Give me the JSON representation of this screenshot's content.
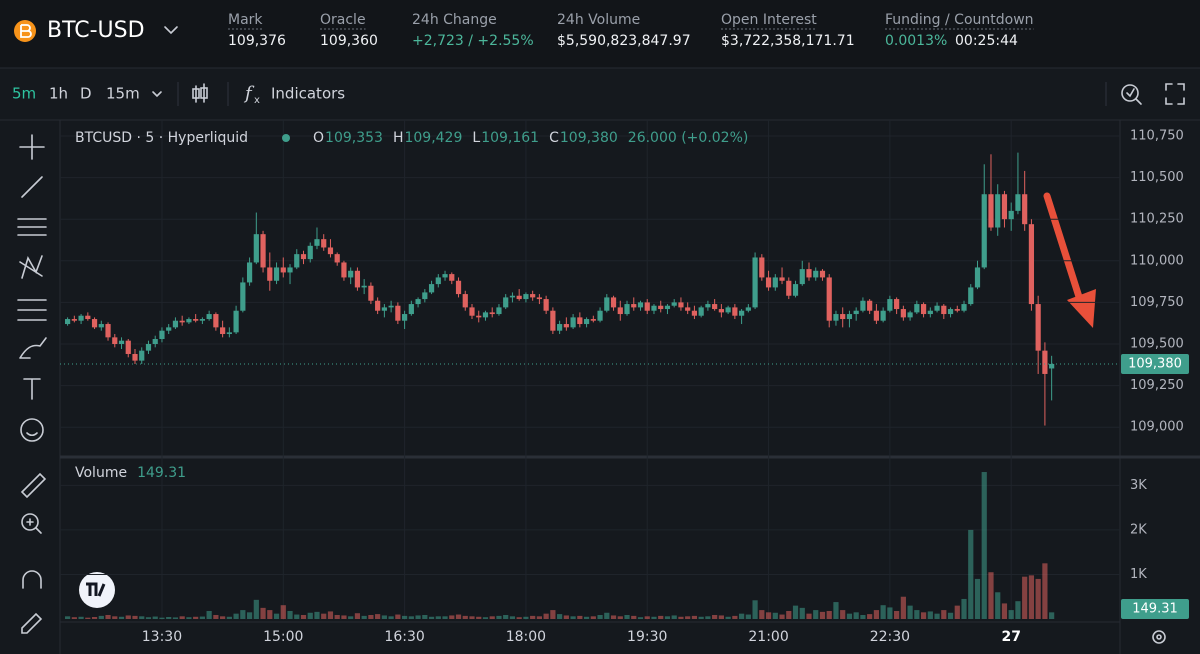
{
  "header": {
    "symbol": "BTC-USD",
    "stats": [
      {
        "label": "Mark",
        "value": "109,376"
      },
      {
        "label": "Oracle",
        "value": "109,360"
      },
      {
        "label": "24h Change",
        "value": "+2,723 / +2.55%"
      },
      {
        "label": "24h Volume",
        "value": "$5,590,823,847.97"
      },
      {
        "label": "Open Interest",
        "value": "$3,722,358,171.71"
      },
      {
        "label": "Funding / Countdown",
        "value": "0.0013%",
        "value2": "00:25:44"
      }
    ]
  },
  "toolbar": {
    "intervals": [
      "5m",
      "1h",
      "D",
      "15m"
    ],
    "indicators": "Indicators"
  },
  "chart_data": {
    "type": "candlestick",
    "title": "BTCUSD · 5 · Hyperliquid",
    "ohlc": [
      {
        "key": "O",
        "value": "109,353"
      },
      {
        "key": "H",
        "value": "109,429"
      },
      {
        "key": "L",
        "value": "109,161"
      },
      {
        "key": "C",
        "value": "109,380"
      }
    ],
    "change": "26.000 (+0.02%)",
    "last_label": "109,380",
    "up_color": "#3f9e8c",
    "down_color": "#e0625f",
    "x": [
      "12:20",
      "12:25",
      "12:30",
      "12:35",
      "12:40",
      "12:45",
      "12:50",
      "12:55",
      "13:00",
      "13:05",
      "13:10",
      "13:15",
      "13:20",
      "13:25",
      "13:30",
      "13:35",
      "13:40",
      "13:45",
      "13:50",
      "13:55",
      "14:00",
      "14:05",
      "14:10",
      "14:15",
      "14:20",
      "14:25",
      "14:30",
      "14:35",
      "14:40",
      "14:45",
      "14:50",
      "14:55",
      "15:00",
      "15:05",
      "15:10",
      "15:15",
      "15:20",
      "15:25",
      "15:30",
      "15:35",
      "15:40",
      "15:45",
      "15:50",
      "15:55",
      "16:00",
      "16:05",
      "16:10",
      "16:15",
      "16:20",
      "16:25",
      "16:30",
      "16:35",
      "16:40",
      "16:45",
      "16:50",
      "16:55",
      "17:00",
      "17:05",
      "17:10",
      "17:15",
      "17:20",
      "17:25",
      "17:30",
      "17:35",
      "17:40",
      "17:45",
      "17:50",
      "17:55",
      "18:00",
      "18:05",
      "18:10",
      "18:15",
      "18:20",
      "18:25",
      "18:30",
      "18:35",
      "18:40",
      "18:45",
      "18:50",
      "18:55",
      "19:00",
      "19:05",
      "19:10",
      "19:15",
      "19:20",
      "19:25",
      "19:30",
      "19:35",
      "19:40",
      "19:45",
      "19:50",
      "19:55",
      "20:00",
      "20:05",
      "20:10",
      "20:15",
      "20:20",
      "20:25",
      "20:30",
      "20:35",
      "20:40",
      "20:45",
      "20:50",
      "20:55",
      "21:00",
      "21:05",
      "21:10",
      "21:15",
      "21:20",
      "21:25",
      "21:30",
      "21:35",
      "21:40",
      "21:45",
      "21:50",
      "21:55",
      "22:00",
      "22:05",
      "22:10",
      "22:15",
      "22:20",
      "22:25",
      "22:30",
      "22:35",
      "22:40",
      "22:45",
      "22:50",
      "22:55",
      "23:00",
      "23:05",
      "23:10",
      "23:15",
      "23:20",
      "23:25",
      "23:30",
      "23:35",
      "23:40",
      "23:45",
      "23:50",
      "23:55",
      "00:00",
      "00:05",
      "00:10",
      "00:15",
      "00:20",
      "00:25",
      "00:30"
    ],
    "candles": [
      [
        109620,
        109660,
        109610,
        109650
      ],
      [
        109650,
        109670,
        109630,
        109640
      ],
      [
        109640,
        109680,
        109620,
        109670
      ],
      [
        109670,
        109690,
        109640,
        109650
      ],
      [
        109650,
        109660,
        109590,
        109600
      ],
      [
        109600,
        109640,
        109580,
        109620
      ],
      [
        109620,
        109630,
        109520,
        109540
      ],
      [
        109540,
        109560,
        109480,
        109500
      ],
      [
        109500,
        109540,
        109470,
        109520
      ],
      [
        109520,
        109530,
        109420,
        109440
      ],
      [
        109440,
        109470,
        109380,
        109400
      ],
      [
        109400,
        109480,
        109380,
        109460
      ],
      [
        109460,
        109520,
        109440,
        109500
      ],
      [
        109500,
        109550,
        109480,
        109530
      ],
      [
        109530,
        109600,
        109510,
        109580
      ],
      [
        109580,
        109620,
        109560,
        109600
      ],
      [
        109600,
        109660,
        109590,
        109640
      ],
      [
        109640,
        109670,
        109610,
        109630
      ],
      [
        109630,
        109660,
        109620,
        109650
      ],
      [
        109650,
        109680,
        109630,
        109640
      ],
      [
        109640,
        109660,
        109620,
        109650
      ],
      [
        109650,
        109700,
        109640,
        109680
      ],
      [
        109680,
        109690,
        109580,
        109600
      ],
      [
        109600,
        109640,
        109540,
        109560
      ],
      [
        109560,
        109600,
        109540,
        109570
      ],
      [
        109570,
        109730,
        109560,
        109700
      ],
      [
        109700,
        109900,
        109690,
        109870
      ],
      [
        109870,
        110020,
        109850,
        109990
      ],
      [
        109990,
        110290,
        109980,
        110160
      ],
      [
        110160,
        110180,
        109930,
        109960
      ],
      [
        109960,
        110050,
        109820,
        109880
      ],
      [
        109880,
        109990,
        109860,
        109960
      ],
      [
        109960,
        110020,
        109900,
        109930
      ],
      [
        109930,
        109980,
        109860,
        109960
      ],
      [
        109960,
        110070,
        109950,
        110040
      ],
      [
        110040,
        110060,
        109980,
        110010
      ],
      [
        110010,
        110110,
        109990,
        110090
      ],
      [
        110090,
        110200,
        110070,
        110130
      ],
      [
        110130,
        110160,
        110060,
        110080
      ],
      [
        110080,
        110130,
        110020,
        110040
      ],
      [
        110040,
        110050,
        109970,
        109990
      ],
      [
        109990,
        110000,
        109880,
        109900
      ],
      [
        109900,
        109960,
        109860,
        109940
      ],
      [
        109940,
        109960,
        109820,
        109840
      ],
      [
        109840,
        109890,
        109800,
        109850
      ],
      [
        109850,
        109870,
        109740,
        109760
      ],
      [
        109760,
        109780,
        109680,
        109700
      ],
      [
        109700,
        109740,
        109660,
        109720
      ],
      [
        109720,
        109760,
        109690,
        109730
      ],
      [
        109730,
        109750,
        109620,
        109640
      ],
      [
        109640,
        109700,
        109590,
        109680
      ],
      [
        109680,
        109760,
        109670,
        109740
      ],
      [
        109740,
        109780,
        109720,
        109770
      ],
      [
        109770,
        109830,
        109750,
        109810
      ],
      [
        109810,
        109880,
        109800,
        109860
      ],
      [
        109860,
        109920,
        109840,
        109900
      ],
      [
        109900,
        109940,
        109880,
        109920
      ],
      [
        109920,
        109930,
        109860,
        109880
      ],
      [
        109880,
        109900,
        109780,
        109800
      ],
      [
        109800,
        109820,
        109700,
        109720
      ],
      [
        109720,
        109740,
        109650,
        109670
      ],
      [
        109670,
        109700,
        109630,
        109660
      ],
      [
        109660,
        109700,
        109640,
        109690
      ],
      [
        109690,
        109720,
        109660,
        109680
      ],
      [
        109680,
        109740,
        109670,
        109720
      ],
      [
        109720,
        109800,
        109710,
        109780
      ],
      [
        109780,
        109810,
        109750,
        109790
      ],
      [
        109790,
        109830,
        109760,
        109770
      ],
      [
        109770,
        109810,
        109750,
        109800
      ],
      [
        109800,
        109820,
        109760,
        109780
      ],
      [
        109780,
        109800,
        109740,
        109770
      ],
      [
        109770,
        109790,
        109680,
        109700
      ],
      [
        109700,
        109720,
        109560,
        109580
      ],
      [
        109580,
        109640,
        109560,
        109620
      ],
      [
        109620,
        109660,
        109580,
        109600
      ],
      [
        109600,
        109680,
        109590,
        109660
      ],
      [
        109660,
        109690,
        109600,
        109620
      ],
      [
        109620,
        109660,
        109600,
        109650
      ],
      [
        109650,
        109670,
        109630,
        109640
      ],
      [
        109640,
        109720,
        109630,
        109700
      ],
      [
        109700,
        109800,
        109690,
        109780
      ],
      [
        109780,
        109790,
        109700,
        109720
      ],
      [
        109720,
        109760,
        109640,
        109680
      ],
      [
        109680,
        109760,
        109670,
        109740
      ],
      [
        109740,
        109780,
        109700,
        109720
      ],
      [
        109720,
        109760,
        109700,
        109750
      ],
      [
        109750,
        109770,
        109680,
        109700
      ],
      [
        109700,
        109740,
        109680,
        109730
      ],
      [
        109730,
        109760,
        109690,
        109710
      ],
      [
        109710,
        109740,
        109680,
        109730
      ],
      [
        109730,
        109770,
        109720,
        109750
      ],
      [
        109750,
        109780,
        109700,
        109720
      ],
      [
        109720,
        109750,
        109680,
        109700
      ],
      [
        109700,
        109730,
        109650,
        109670
      ],
      [
        109670,
        109730,
        109660,
        109720
      ],
      [
        109720,
        109760,
        109700,
        109740
      ],
      [
        109740,
        109770,
        109700,
        109710
      ],
      [
        109710,
        109740,
        109660,
        109690
      ],
      [
        109690,
        109730,
        109680,
        109720
      ],
      [
        109720,
        109740,
        109650,
        109670
      ],
      [
        109670,
        109710,
        109620,
        109700
      ],
      [
        109700,
        109740,
        109690,
        109720
      ],
      [
        109720,
        110050,
        109710,
        110020
      ],
      [
        110020,
        110040,
        109880,
        109900
      ],
      [
        109900,
        109940,
        109820,
        109840
      ],
      [
        109840,
        109920,
        109820,
        109900
      ],
      [
        109900,
        109960,
        109860,
        109880
      ],
      [
        109880,
        109900,
        109770,
        109790
      ],
      [
        109790,
        109880,
        109780,
        109860
      ],
      [
        109860,
        110000,
        109850,
        109950
      ],
      [
        109950,
        109990,
        109880,
        109900
      ],
      [
        109900,
        109960,
        109880,
        109940
      ],
      [
        109940,
        109950,
        109880,
        109900
      ],
      [
        109900,
        109920,
        109600,
        109640
      ],
      [
        109640,
        109700,
        109610,
        109680
      ],
      [
        109680,
        109720,
        109600,
        109650
      ],
      [
        109650,
        109700,
        109600,
        109680
      ],
      [
        109680,
        109720,
        109640,
        109700
      ],
      [
        109700,
        109780,
        109690,
        109760
      ],
      [
        109760,
        109770,
        109680,
        109700
      ],
      [
        109700,
        109740,
        109620,
        109640
      ],
      [
        109640,
        109720,
        109630,
        109700
      ],
      [
        109700,
        109790,
        109690,
        109770
      ],
      [
        109770,
        109780,
        109680,
        109710
      ],
      [
        109710,
        109730,
        109640,
        109660
      ],
      [
        109660,
        109700,
        109640,
        109690
      ],
      [
        109690,
        109760,
        109680,
        109740
      ],
      [
        109740,
        109750,
        109660,
        109680
      ],
      [
        109680,
        109720,
        109660,
        109700
      ],
      [
        109700,
        109750,
        109690,
        109730
      ],
      [
        109730,
        109740,
        109650,
        109680
      ],
      [
        109680,
        109720,
        109660,
        109710
      ],
      [
        109710,
        109730,
        109690,
        109700
      ],
      [
        109700,
        109760,
        109690,
        109740
      ],
      [
        109740,
        109860,
        109730,
        109840
      ],
      [
        109840,
        110000,
        109830,
        109960
      ],
      [
        109960,
        110580,
        109950,
        110400
      ],
      [
        110400,
        110640,
        110180,
        110200
      ],
      [
        110200,
        110460,
        110150,
        110400
      ],
      [
        110400,
        110420,
        110200,
        110250
      ],
      [
        110250,
        110350,
        110180,
        110300
      ],
      [
        110300,
        110650,
        110280,
        110400
      ],
      [
        110400,
        110540,
        110180,
        110220
      ],
      [
        110220,
        110250,
        109700,
        109740
      ],
      [
        109740,
        109790,
        109320,
        109460
      ],
      [
        109460,
        109510,
        109010,
        109320
      ],
      [
        109353,
        109429,
        109161,
        109380
      ]
    ],
    "ylim": [
      108833,
      110816
    ],
    "yticks": [
      {
        "value": 109000,
        "label": "109,000"
      },
      {
        "value": 109250,
        "label": "109,250"
      },
      {
        "value": 109500,
        "label": "109,500"
      },
      {
        "value": 109750,
        "label": "109,750"
      },
      {
        "value": 110000,
        "label": "110,000"
      },
      {
        "value": 110250,
        "label": "110,250"
      },
      {
        "value": 110500,
        "label": "110,500"
      },
      {
        "value": 110750,
        "label": "110,750"
      }
    ],
    "xticks": [
      "13:30",
      "15:00",
      "16:30",
      "18:00",
      "19:30",
      "21:00",
      "22:30",
      {
        "value": "00:00",
        "label": "27"
      }
    ],
    "grid": true,
    "volume": {
      "title": "Volume",
      "value_label": "149.31",
      "values": [
        60,
        40,
        50,
        30,
        45,
        70,
        90,
        60,
        50,
        80,
        70,
        60,
        40,
        55,
        30,
        45,
        35,
        60,
        40,
        50,
        55,
        180,
        90,
        60,
        50,
        120,
        200,
        150,
        430,
        250,
        200,
        120,
        310,
        180,
        100,
        90,
        140,
        160,
        120,
        170,
        90,
        80,
        60,
        130,
        70,
        90,
        110,
        80,
        60,
        100,
        70,
        60,
        80,
        90,
        50,
        60,
        60,
        80,
        100,
        70,
        60,
        50,
        40,
        60,
        70,
        90,
        60,
        40,
        50,
        70,
        60,
        120,
        200,
        110,
        80,
        60,
        70,
        50,
        60,
        90,
        140,
        80,
        60,
        90,
        70,
        40,
        60,
        50,
        70,
        60,
        80,
        50,
        60,
        70,
        50,
        60,
        90,
        80,
        50,
        70,
        120,
        100,
        420,
        200,
        150,
        140,
        100,
        180,
        300,
        250,
        120,
        200,
        160,
        180,
        380,
        200,
        120,
        150,
        90,
        110,
        200,
        310,
        260,
        180,
        500,
        300,
        200,
        150,
        170,
        120,
        200,
        140,
        300,
        450,
        2000,
        900,
        3300,
        1050,
        600,
        350,
        200,
        400,
        950,
        980,
        900,
        1250,
        149.31
      ],
      "ylim": [
        0,
        3570
      ],
      "yticks": [
        {
          "value": 1000,
          "label": "1K"
        },
        {
          "value": 2000,
          "label": "2K"
        },
        {
          "value": 3000,
          "label": "3K"
        }
      ]
    }
  }
}
